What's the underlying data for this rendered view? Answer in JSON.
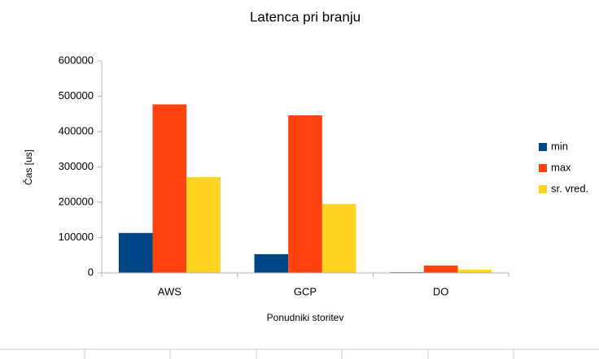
{
  "chart_data": {
    "type": "bar",
    "title": "Latenca pri branju",
    "x_label": "Ponudniki storitev",
    "y_label": "Čas [us]",
    "categories": [
      "AWS",
      "GCP",
      "DO"
    ],
    "series": [
      {
        "name": "min",
        "color": "#004586",
        "values": [
          113000,
          53000,
          2000
        ]
      },
      {
        "name": "max",
        "color": "#ff420e",
        "values": [
          477000,
          446000,
          21000
        ]
      },
      {
        "name": "sr. vred.",
        "color": "#ffd320",
        "values": [
          271000,
          195000,
          9000
        ]
      }
    ],
    "ylim": [
      0,
      600000
    ],
    "yticks": [
      0,
      100000,
      200000,
      300000,
      400000,
      500000,
      600000
    ],
    "grid": false,
    "legend": "right"
  }
}
